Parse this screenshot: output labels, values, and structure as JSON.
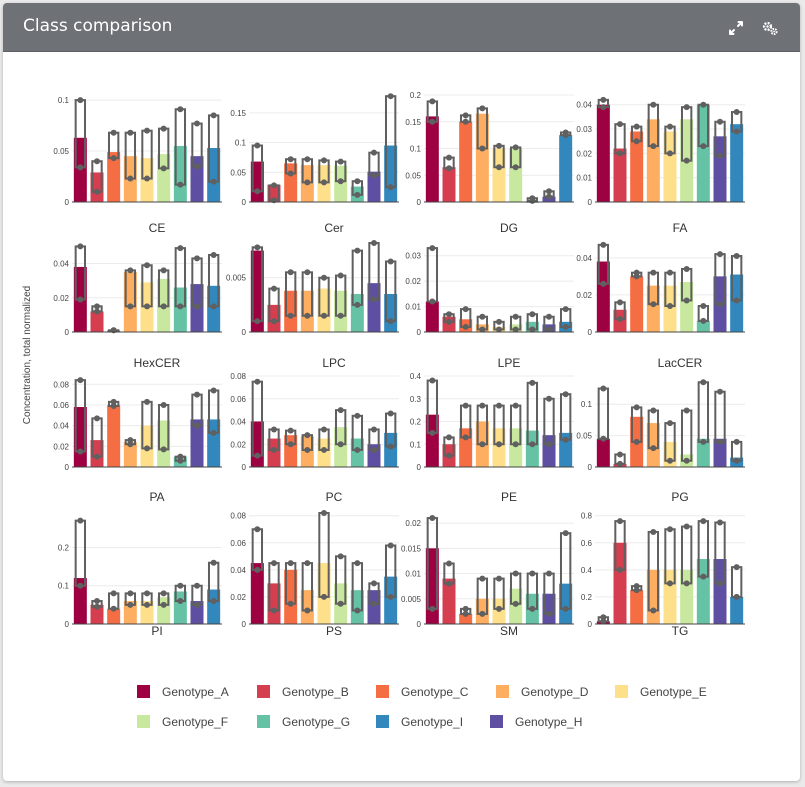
{
  "header": {
    "title": "Class comparison",
    "expand_icon": "expand-icon",
    "settings_icon": "gear-icon"
  },
  "chart_data": {
    "type": "bar",
    "description_ylabel": "Concentration, total normalized",
    "series_order": [
      "Genotype_A",
      "Genotype_B",
      "Genotype_C",
      "Genotype_D",
      "Genotype_E",
      "Genotype_F",
      "Genotype_G",
      "Genotype_H",
      "Genotype_I"
    ],
    "legend": [
      {
        "name": "Genotype_A",
        "color": "#9e0142"
      },
      {
        "name": "Genotype_B",
        "color": "#d53e4f"
      },
      {
        "name": "Genotype_C",
        "color": "#f46d43"
      },
      {
        "name": "Genotype_D",
        "color": "#fdae61"
      },
      {
        "name": "Genotype_E",
        "color": "#fee08b"
      },
      {
        "name": "Genotype_F",
        "color": "#c7e89e"
      },
      {
        "name": "Genotype_G",
        "color": "#66c2a5"
      },
      {
        "name": "Genotype_I",
        "color": "#3288bd"
      },
      {
        "name": "Genotype_H",
        "color": "#5e4fa2"
      }
    ],
    "panels": [
      {
        "title": "CE",
        "ylim": [
          0,
          0.105
        ],
        "ticks": [
          0,
          0.05,
          0.1
        ],
        "tick_labels": [
          "0",
          "0.05",
          "0.1"
        ],
        "values": [
          0.063,
          0.029,
          0.049,
          0.045,
          0.043,
          0.047,
          0.055,
          0.045,
          0.053
        ],
        "box_lo": [
          0.034,
          0.01,
          0.043,
          0.023,
          0.023,
          0.033,
          0.017,
          0.035,
          0.02
        ],
        "box_hi": [
          0.1,
          0.04,
          0.068,
          0.068,
          0.07,
          0.072,
          0.091,
          0.077,
          0.085
        ]
      },
      {
        "title": "Cer",
        "ylim": [
          0,
          0.18
        ],
        "ticks": [
          0,
          0.05,
          0.1,
          0.15
        ],
        "tick_labels": [
          "0",
          "0.05",
          "0.1",
          "0.15"
        ],
        "values": [
          0.068,
          0.029,
          0.065,
          0.062,
          0.062,
          0.061,
          0.026,
          0.051,
          0.095
        ],
        "box_lo": [
          0.018,
          0.003,
          0.048,
          0.033,
          0.033,
          0.035,
          0.012,
          0.045,
          0.025
        ],
        "box_hi": [
          0.095,
          0.028,
          0.072,
          0.072,
          0.07,
          0.068,
          0.035,
          0.083,
          0.178
        ]
      },
      {
        "title": "DG",
        "ylim": [
          0,
          0.2
        ],
        "ticks": [
          0,
          0.05,
          0.1,
          0.15,
          0.2
        ],
        "tick_labels": [
          "0",
          "0.05",
          "0.1",
          "0.15",
          "0.2"
        ],
        "values": [
          0.16,
          0.065,
          0.15,
          0.165,
          0.1,
          0.1,
          0,
          0.01,
          0.125
        ],
        "box_lo": [
          0.15,
          0.063,
          0.15,
          0.1,
          0.065,
          0.065,
          0.002,
          0.01,
          0.125
        ],
        "box_hi": [
          0.188,
          0.083,
          0.162,
          0.175,
          0.105,
          0.102,
          0.007,
          0.02,
          0.13
        ]
      },
      {
        "title": "FA",
        "ylim": [
          0,
          0.044
        ],
        "ticks": [
          0,
          0.01,
          0.02,
          0.03,
          0.04
        ],
        "tick_labels": [
          "0",
          "0.01",
          "0.02",
          "0.03",
          "0.04"
        ],
        "values": [
          0.04,
          0.022,
          0.029,
          0.034,
          0.029,
          0.034,
          0.04,
          0.027,
          0.032
        ],
        "box_lo": [
          0.039,
          0.02,
          0.025,
          0.023,
          0.02,
          0.017,
          0.023,
          0.019,
          0.029
        ],
        "box_hi": [
          0.042,
          0.032,
          0.031,
          0.04,
          0.031,
          0.039,
          0.04,
          0.033,
          0.037
        ]
      },
      {
        "title": "HexCER",
        "ylim": [
          0,
          0.052
        ],
        "ticks": [
          0,
          0.02,
          0.04
        ],
        "tick_labels": [
          "0",
          "0.02",
          "0.04"
        ],
        "values": [
          0.038,
          0.012,
          0.001,
          0.035,
          0.029,
          0.031,
          0.026,
          0.028,
          0.027
        ],
        "box_lo": [
          0.019,
          0.012,
          0.001,
          0.015,
          0.015,
          0.015,
          0.015,
          0.015,
          0.015
        ],
        "box_hi": [
          0.05,
          0.015,
          0.001,
          0.036,
          0.039,
          0.036,
          0.049,
          0.043,
          0.045
        ]
      },
      {
        "title": "LPC",
        "ylim": [
          0,
          0.0082
        ],
        "ticks": [
          0,
          0.005
        ],
        "tick_labels": [
          "0",
          "0.005"
        ],
        "values": [
          0.0075,
          0.0025,
          0.0038,
          0.0038,
          0.004,
          0.0038,
          0.0035,
          0.0045,
          0.0035
        ],
        "box_lo": [
          0.001,
          0.001,
          0.0015,
          0.0015,
          0.0015,
          0.0015,
          0.0025,
          0.003,
          0.001
        ],
        "box_hi": [
          0.0078,
          0.004,
          0.0055,
          0.0055,
          0.005,
          0.0052,
          0.0075,
          0.0082,
          0.0065
        ]
      },
      {
        "title": "LPE",
        "ylim": [
          0,
          0.035
        ],
        "ticks": [
          0,
          0.01,
          0.02,
          0.03
        ],
        "tick_labels": [
          "0",
          "0.01",
          "0.02",
          "0.03"
        ],
        "values": [
          0.012,
          0.006,
          0.005,
          0.003,
          0.002,
          0.003,
          0.004,
          0.003,
          0.004
        ],
        "box_lo": [
          0.012,
          0.004,
          0.002,
          0.001,
          0.001,
          0.001,
          0.001,
          0.001,
          0.002
        ],
        "box_hi": [
          0.033,
          0.007,
          0.009,
          0.006,
          0.004,
          0.006,
          0.007,
          0.006,
          0.009
        ]
      },
      {
        "title": "LacCER",
        "ylim": [
          0,
          0.048
        ],
        "ticks": [
          0,
          0.02,
          0.04
        ],
        "tick_labels": [
          "0",
          "0.02",
          "0.04"
        ],
        "values": [
          0.038,
          0.012,
          0.03,
          0.025,
          0.025,
          0.027,
          0.006,
          0.03,
          0.031
        ],
        "box_lo": [
          0.026,
          0.007,
          0.03,
          0.015,
          0.014,
          0.017,
          0.006,
          0.015,
          0.017
        ],
        "box_hi": [
          0.047,
          0.016,
          0.032,
          0.032,
          0.032,
          0.034,
          0.014,
          0.042,
          0.041
        ]
      },
      {
        "title": "PA",
        "ylim": [
          0,
          0.088
        ],
        "ticks": [
          0,
          0.02,
          0.04,
          0.06,
          0.08
        ],
        "tick_labels": [
          "0",
          "0.02",
          "0.04",
          "0.06",
          "0.08"
        ],
        "values": [
          0.058,
          0.026,
          0.06,
          0.024,
          0.04,
          0.045,
          0.01,
          0.046,
          0.046
        ],
        "box_lo": [
          0.015,
          0.01,
          0.059,
          0.022,
          0.018,
          0.017,
          0.006,
          0.04,
          0.033
        ],
        "box_hi": [
          0.084,
          0.047,
          0.063,
          0.026,
          0.063,
          0.06,
          0.01,
          0.07,
          0.074
        ]
      },
      {
        "title": "PC",
        "ylim": [
          0,
          0.08
        ],
        "ticks": [
          0,
          0.02,
          0.04,
          0.06,
          0.08
        ],
        "tick_labels": [
          "0",
          "0.02",
          "0.04",
          "0.06",
          "0.08"
        ],
        "values": [
          0.04,
          0.025,
          0.028,
          0.027,
          0.025,
          0.035,
          0.025,
          0.02,
          0.03
        ],
        "box_lo": [
          0.01,
          0.015,
          0.02,
          0.015,
          0.015,
          0.02,
          0.015,
          0.015,
          0.018
        ],
        "box_hi": [
          0.075,
          0.033,
          0.032,
          0.028,
          0.033,
          0.05,
          0.045,
          0.033,
          0.047
        ]
      },
      {
        "title": "PE",
        "ylim": [
          0,
          0.4
        ],
        "ticks": [
          0,
          0.1,
          0.2,
          0.3,
          0.4
        ],
        "tick_labels": [
          "0",
          "0.1",
          "0.2",
          "0.3",
          "0.4"
        ],
        "values": [
          0.23,
          0.1,
          0.17,
          0.2,
          0.17,
          0.17,
          0.16,
          0.14,
          0.15
        ],
        "box_lo": [
          0.15,
          0.05,
          0.13,
          0.1,
          0.1,
          0.1,
          0.1,
          0.1,
          0.12
        ],
        "box_hi": [
          0.38,
          0.13,
          0.27,
          0.27,
          0.27,
          0.27,
          0.37,
          0.3,
          0.32
        ]
      },
      {
        "title": "PG",
        "ylim": [
          0,
          0.145
        ],
        "ticks": [
          0,
          0.05,
          0.1
        ],
        "tick_labels": [
          "0",
          "0.05",
          "0.1"
        ],
        "values": [
          0.045,
          0.005,
          0.08,
          0.07,
          0.04,
          0.02,
          0.045,
          0.045,
          0.015
        ],
        "box_lo": [
          0.045,
          0.005,
          0.04,
          0.03,
          0.01,
          0.01,
          0.04,
          0.04,
          0.01
        ],
        "box_hi": [
          0.125,
          0.02,
          0.095,
          0.09,
          0.07,
          0.09,
          0.135,
          0.12,
          0.04
        ]
      },
      {
        "title": "PI",
        "ylim": [
          0,
          0.29
        ],
        "ticks": [
          0,
          0.1,
          0.2
        ],
        "tick_labels": [
          "0",
          "0.1",
          "0.2"
        ],
        "values": [
          0.12,
          0.05,
          0.04,
          0.06,
          0.06,
          0.07,
          0.085,
          0.06,
          0.09
        ],
        "box_lo": [
          0.1,
          0.045,
          0.04,
          0.05,
          0.05,
          0.05,
          0.06,
          0.05,
          0.06
        ],
        "box_hi": [
          0.27,
          0.06,
          0.08,
          0.08,
          0.08,
          0.08,
          0.1,
          0.1,
          0.16
        ]
      },
      {
        "title": "PS",
        "ylim": [
          0,
          0.082
        ],
        "ticks": [
          0,
          0.02,
          0.04,
          0.06,
          0.08
        ],
        "tick_labels": [
          "0",
          "0.02",
          "0.04",
          "0.06",
          "0.08"
        ],
        "values": [
          0.045,
          0.03,
          0.04,
          0.025,
          0.045,
          0.03,
          0.025,
          0.025,
          0.035
        ],
        "box_lo": [
          0.04,
          0.01,
          0.015,
          0.01,
          0.02,
          0.015,
          0.01,
          0.015,
          0.02
        ],
        "box_hi": [
          0.07,
          0.045,
          0.045,
          0.045,
          0.082,
          0.05,
          0.045,
          0.03,
          0.058
        ]
      },
      {
        "title": "SM",
        "ylim": [
          0,
          0.022
        ],
        "ticks": [
          0,
          0.005,
          0.01,
          0.015,
          0.02
        ],
        "tick_labels": [
          "0",
          "0.005",
          "0.01",
          "0.015",
          "0.02"
        ],
        "values": [
          0.015,
          0.009,
          0.002,
          0.005,
          0.005,
          0.007,
          0.006,
          0.006,
          0.008
        ],
        "box_lo": [
          0.003,
          0.008,
          0.002,
          0.002,
          0.003,
          0.004,
          0.003,
          0.002,
          0.003
        ],
        "box_hi": [
          0.021,
          0.012,
          0.003,
          0.009,
          0.009,
          0.01,
          0.01,
          0.01,
          0.018
        ]
      },
      {
        "title": "TG",
        "ylim": [
          0,
          0.82
        ],
        "ticks": [
          0,
          0.2,
          0.4,
          0.6,
          0.8
        ],
        "tick_labels": [
          "0",
          "0.2",
          "0.4",
          "0.6",
          "0.8"
        ],
        "values": [
          0.02,
          0.6,
          0.25,
          0.4,
          0.4,
          0.4,
          0.48,
          0.48,
          0.2
        ],
        "box_lo": [
          0.02,
          0.4,
          0.25,
          0.1,
          0.3,
          0.3,
          0.35,
          0.3,
          0.2
        ],
        "box_hi": [
          0.05,
          0.76,
          0.28,
          0.68,
          0.7,
          0.72,
          0.76,
          0.75,
          0.42
        ]
      }
    ]
  }
}
